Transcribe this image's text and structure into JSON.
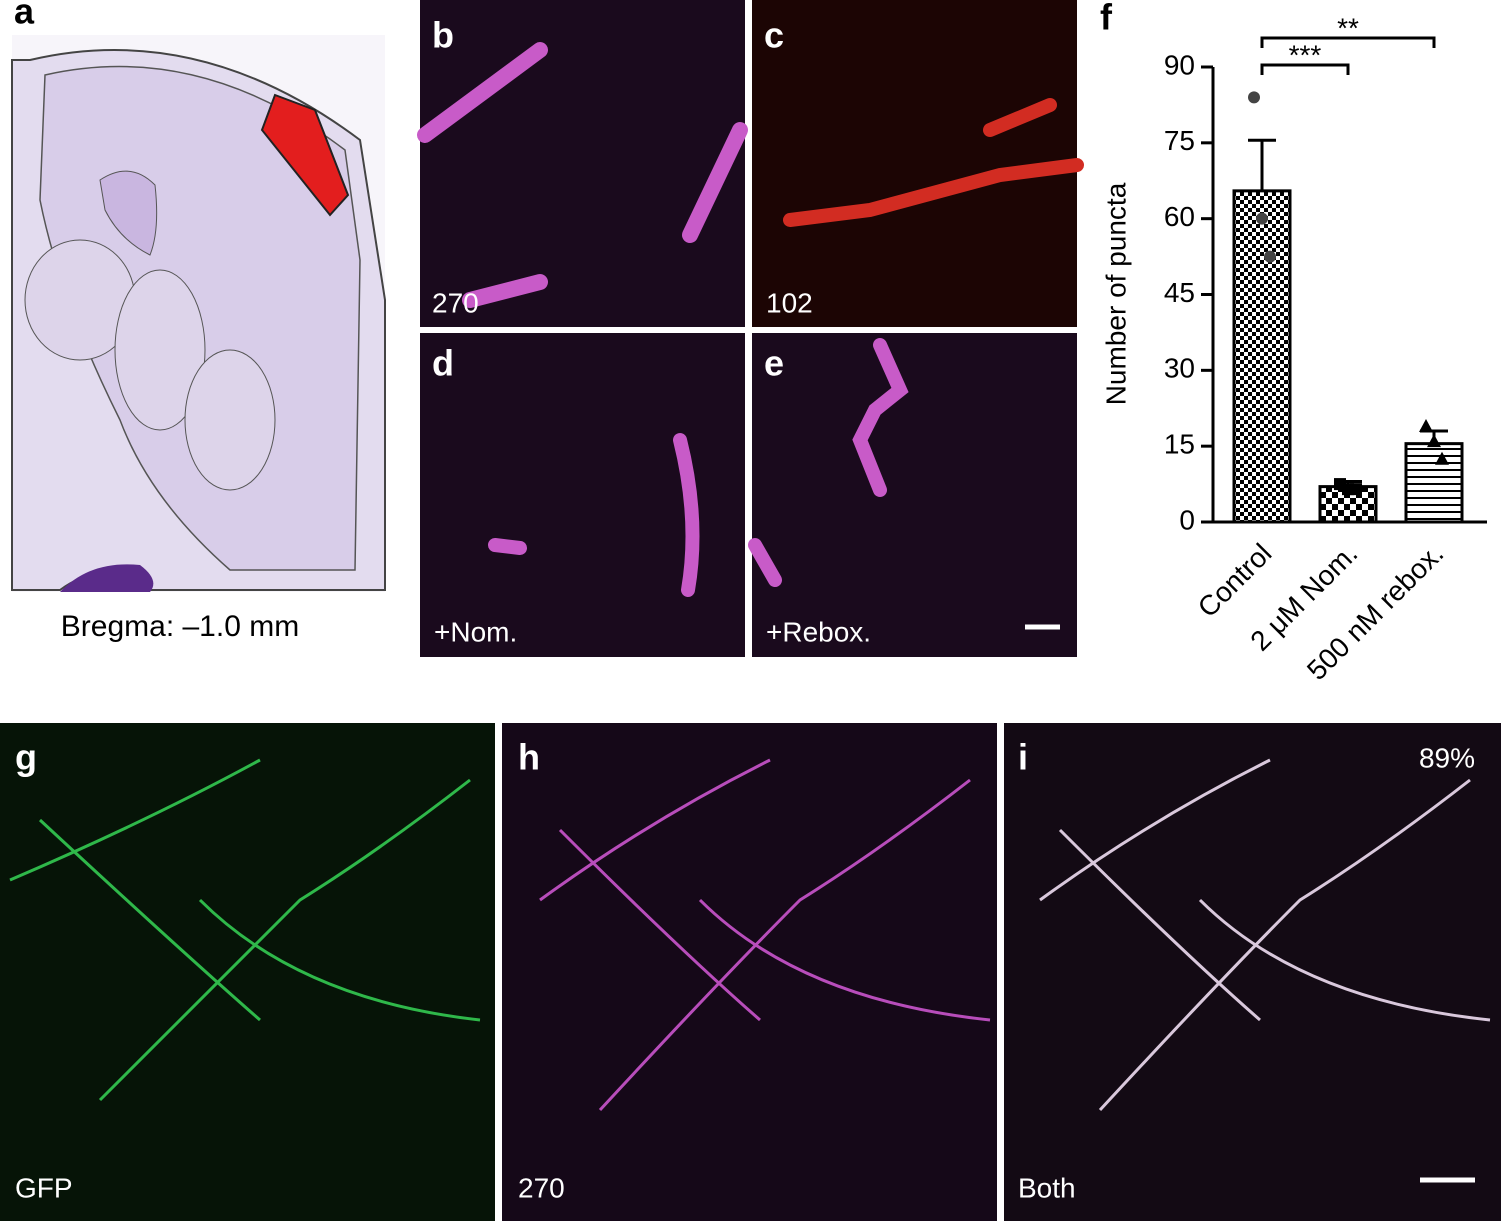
{
  "panels": {
    "a": {
      "label": "a",
      "caption": "Bregma: –1.0 mm"
    },
    "b": {
      "label": "b",
      "text": "270"
    },
    "c": {
      "label": "c",
      "text": "102"
    },
    "d": {
      "label": "d",
      "text": "+Nom."
    },
    "e": {
      "label": "e",
      "text": "+Rebox."
    },
    "g": {
      "label": "g",
      "text": "GFP"
    },
    "h": {
      "label": "h",
      "text": "270"
    },
    "i": {
      "label": "i",
      "text": "Both",
      "percent": "89%"
    }
  },
  "chart_data": {
    "type": "bar",
    "panel_label": "f",
    "ylabel": "Number of puncta",
    "categories": [
      "Control",
      "2 μM Nom.",
      "500 nM rebox."
    ],
    "values": [
      65.5,
      7,
      15.5
    ],
    "errors": [
      10,
      1,
      2.5
    ],
    "points": [
      [
        84,
        60,
        52.5
      ],
      [
        7.5,
        6.5,
        6.5
      ],
      [
        19,
        16,
        12.5
      ]
    ],
    "annotations": [
      "***",
      "**"
    ],
    "ylim": [
      0,
      90
    ],
    "yticks": [
      0,
      15,
      30,
      45,
      60,
      75,
      90
    ],
    "grid": false
  }
}
